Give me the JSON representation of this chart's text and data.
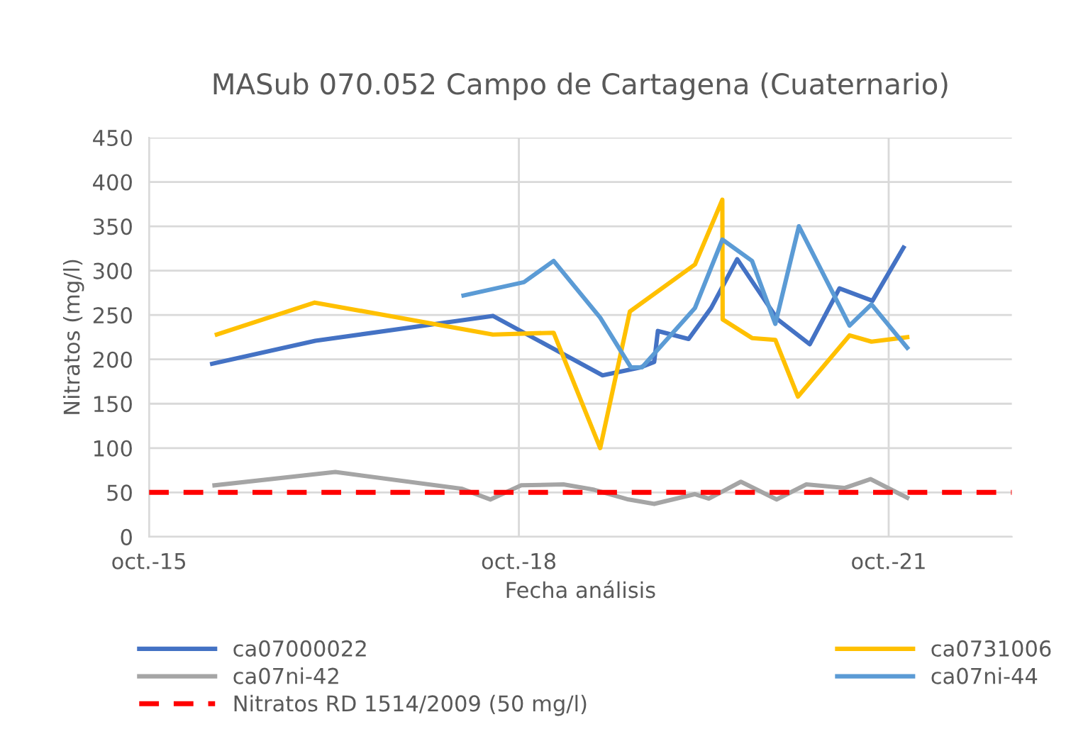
{
  "chart_data": {
    "type": "line",
    "title": "MASub 070.052 Campo de Cartagena (Cuaternario)",
    "xlabel": "Fecha análisis",
    "ylabel": "Nitratos (mg/l)",
    "xlim": [
      "2015-10-01",
      "2022-10-01"
    ],
    "xticks": [
      {
        "value": "2015-10-01",
        "label": "oct.-15"
      },
      {
        "value": "2018-10-01",
        "label": "oct.-18"
      },
      {
        "value": "2021-10-01",
        "label": "oct.-21"
      }
    ],
    "ylim": [
      0,
      450
    ],
    "yticks": [
      0,
      50,
      100,
      150,
      200,
      250,
      300,
      350,
      400,
      450
    ],
    "grid": true,
    "legend": "bottom",
    "line_style": "solid",
    "marker": "none",
    "series": [
      {
        "name": "ca07000022",
        "color": "#4472c4",
        "x": [
          "2016-04-05",
          "2017-02-05",
          "2018-07-16",
          "2019-06-06",
          "2019-09-27",
          "2019-11-06",
          "2019-11-17",
          "2020-02-16",
          "2020-04-23",
          "2020-07-09",
          "2020-11-06",
          "2021-02-09",
          "2021-05-08",
          "2021-08-14",
          "2021-11-14"
        ],
        "values": [
          195,
          221,
          249,
          182,
          191,
          197,
          232,
          223,
          258,
          313,
          245,
          217,
          280,
          266,
          326
        ]
      },
      {
        "name": "ca0731006",
        "color": "#ffc000",
        "x": [
          "2016-04-19",
          "2017-02-03",
          "2018-07-16",
          "2019-01-12",
          "2019-05-30",
          "2019-08-26",
          "2020-03-06",
          "2020-05-26",
          "2020-05-27",
          "2020-08-22",
          "2020-10-30",
          "2021-01-05",
          "2021-06-07",
          "2021-08-11",
          "2021-11-25"
        ],
        "values": [
          228,
          264,
          228,
          230,
          100,
          254,
          307,
          380,
          245,
          224,
          222,
          158,
          227,
          220,
          225
        ]
      },
      {
        "name": "ca07ni-42",
        "color": "#a5a5a5",
        "x": [
          "2016-04-12",
          "2017-04-05",
          "2018-04-16",
          "2018-07-09",
          "2018-10-08",
          "2019-02-10",
          "2019-05-12",
          "2019-08-22",
          "2019-11-06",
          "2020-03-06",
          "2020-04-16",
          "2020-07-20",
          "2020-11-03",
          "2021-01-30",
          "2021-05-23",
          "2021-08-08",
          "2021-11-25"
        ],
        "values": [
          58,
          73,
          54,
          42,
          58,
          59,
          53,
          42,
          37,
          48,
          43,
          62,
          42,
          59,
          55,
          65,
          44
        ]
      },
      {
        "name": "ca07ni-44",
        "color": "#5b9bd5",
        "x": [
          "2018-04-20",
          "2018-10-16",
          "2019-01-12",
          "2019-05-30",
          "2019-08-29",
          "2019-10-01",
          "2020-03-06",
          "2020-05-26",
          "2020-08-22",
          "2020-10-30",
          "2021-01-08",
          "2021-06-07",
          "2021-08-11",
          "2021-11-25"
        ],
        "values": [
          272,
          287,
          311,
          247,
          191,
          191,
          258,
          335,
          311,
          240,
          350,
          238,
          262,
          213
        ]
      }
    ],
    "ref_lines": [
      {
        "axis": "y",
        "value": 50,
        "label": "Nitratos RD 1514/2009 (50 mg/l)",
        "color": "#ff0000",
        "line_style": "dashed"
      }
    ]
  }
}
